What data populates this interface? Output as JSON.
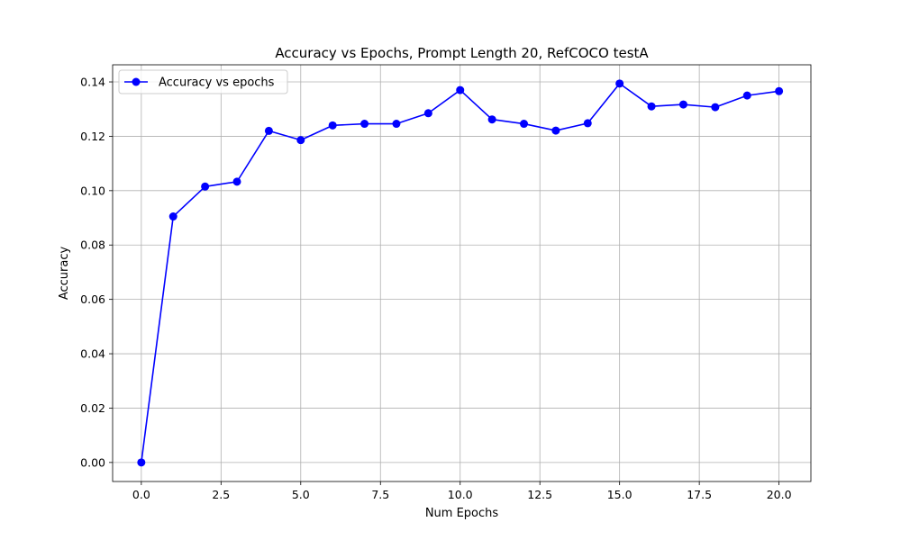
{
  "chart_data": {
    "type": "line",
    "title": "Accuracy vs Epochs, Prompt Length 20, RefCOCO testA",
    "xlabel": "Num Epochs",
    "ylabel": "Accuracy",
    "xlim": [
      -0.9,
      21.0
    ],
    "ylim": [
      -0.007,
      0.1463
    ],
    "grid": true,
    "legend_position": "top-left",
    "xticks": [
      "0.0",
      "2.5",
      "5.0",
      "7.5",
      "10.0",
      "12.5",
      "15.0",
      "17.5",
      "20.0"
    ],
    "yticks": [
      "0.00",
      "0.02",
      "0.04",
      "0.06",
      "0.08",
      "0.10",
      "0.12",
      "0.14"
    ],
    "series": [
      {
        "name": "Accuracy vs epochs",
        "color": "#0000ff",
        "marker": "circle",
        "x": [
          0,
          1,
          2,
          3,
          4,
          5,
          6,
          7,
          8,
          9,
          10,
          11,
          12,
          13,
          14,
          15,
          16,
          17,
          18,
          19,
          20
        ],
        "values": [
          0.0,
          0.0905,
          0.1015,
          0.1033,
          0.122,
          0.1186,
          0.124,
          0.1246,
          0.1246,
          0.1285,
          0.137,
          0.1262,
          0.1246,
          0.1221,
          0.1248,
          0.1394,
          0.131,
          0.1317,
          0.1307,
          0.135,
          0.1366
        ]
      }
    ]
  }
}
